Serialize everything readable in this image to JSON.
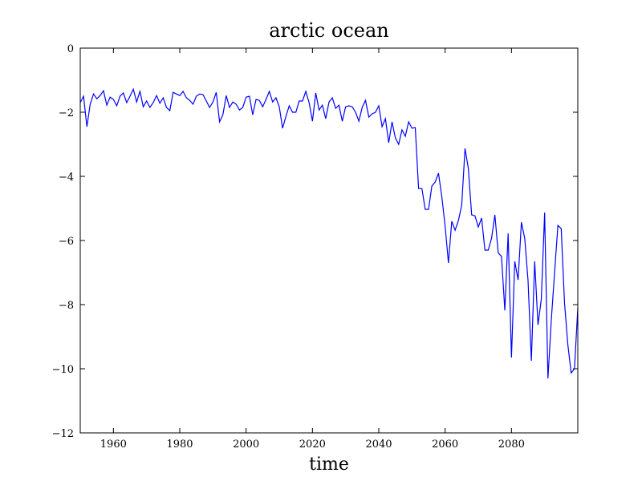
{
  "chart_data": {
    "type": "line",
    "title": "arctic ocean",
    "x_label": "time",
    "x": [
      1950,
      1951,
      1952,
      1953,
      1954,
      1955,
      1956,
      1957,
      1958,
      1959,
      1960,
      1961,
      1962,
      1963,
      1964,
      1965,
      1966,
      1967,
      1968,
      1969,
      1970,
      1971,
      1972,
      1973,
      1974,
      1975,
      1976,
      1977,
      1978,
      1979,
      1980,
      1981,
      1982,
      1983,
      1984,
      1985,
      1986,
      1987,
      1988,
      1989,
      1990,
      1991,
      1992,
      1993,
      1994,
      1995,
      1996,
      1997,
      1998,
      1999,
      2000,
      2001,
      2002,
      2003,
      2004,
      2005,
      2006,
      2007,
      2008,
      2009,
      2010,
      2011,
      2012,
      2013,
      2014,
      2015,
      2016,
      2017,
      2018,
      2019,
      2020,
      2021,
      2022,
      2023,
      2024,
      2025,
      2026,
      2027,
      2028,
      2029,
      2030,
      2031,
      2032,
      2033,
      2034,
      2035,
      2036,
      2037,
      2038,
      2039,
      2040,
      2041,
      2042,
      2043,
      2044,
      2045,
      2046,
      2047,
      2048,
      2049,
      2050,
      2051,
      2052,
      2053,
      2054,
      2055,
      2056,
      2057,
      2058,
      2059,
      2060,
      2061,
      2062,
      2063,
      2064,
      2065,
      2066,
      2067,
      2068,
      2069,
      2070,
      2071,
      2072,
      2073,
      2074,
      2075,
      2076,
      2077,
      2078,
      2079,
      2080,
      2081,
      2082,
      2083,
      2084,
      2085,
      2086,
      2087,
      2088,
      2089,
      2090,
      2091,
      2092,
      2093,
      2094,
      2095,
      2096,
      2097,
      2098,
      2099,
      2100
    ],
    "series": [
      {
        "color": "#0000ff",
        "values": [
          -1.7,
          -1.5,
          -2.45,
          -1.75,
          -1.43,
          -1.58,
          -1.48,
          -1.33,
          -1.78,
          -1.53,
          -1.6,
          -1.8,
          -1.5,
          -1.4,
          -1.7,
          -1.5,
          -1.28,
          -1.68,
          -1.35,
          -1.83,
          -1.65,
          -1.85,
          -1.7,
          -1.48,
          -1.72,
          -1.55,
          -1.85,
          -1.95,
          -1.38,
          -1.43,
          -1.48,
          -1.35,
          -1.55,
          -1.63,
          -1.75,
          -1.5,
          -1.43,
          -1.45,
          -1.65,
          -1.85,
          -1.68,
          -1.38,
          -2.3,
          -2.08,
          -1.48,
          -1.85,
          -1.68,
          -1.75,
          -1.93,
          -1.85,
          -1.53,
          -1.5,
          -2.08,
          -1.6,
          -1.63,
          -1.83,
          -1.6,
          -1.35,
          -1.68,
          -1.55,
          -1.83,
          -2.5,
          -2.13,
          -1.8,
          -2.0,
          -2.0,
          -1.65,
          -1.65,
          -1.35,
          -1.7,
          -2.28,
          -1.4,
          -1.93,
          -1.78,
          -2.2,
          -1.68,
          -1.55,
          -1.88,
          -1.78,
          -2.28,
          -1.83,
          -1.8,
          -1.83,
          -2.0,
          -2.28,
          -1.85,
          -1.63,
          -2.15,
          -2.05,
          -2.0,
          -1.8,
          -2.45,
          -2.2,
          -2.95,
          -2.3,
          -2.8,
          -3.0,
          -2.55,
          -2.75,
          -2.3,
          -2.5,
          -2.48,
          -4.38,
          -4.38,
          -5.03,
          -5.03,
          -4.3,
          -4.18,
          -3.9,
          -4.63,
          -5.55,
          -6.7,
          -5.4,
          -5.68,
          -5.38,
          -4.9,
          -3.13,
          -3.75,
          -5.2,
          -5.23,
          -5.58,
          -5.3,
          -6.3,
          -6.3,
          -5.93,
          -5.2,
          -6.38,
          -6.5,
          -8.18,
          -5.78,
          -9.65,
          -6.65,
          -7.23,
          -5.43,
          -5.93,
          -7.25,
          -9.75,
          -6.65,
          -8.63,
          -7.83,
          -5.13,
          -10.3,
          -8.5,
          -7.0,
          -5.53,
          -5.63,
          -7.95,
          -9.25,
          -10.13,
          -10.0,
          -8.1
        ]
      }
    ],
    "xlim": [
      1950,
      2100
    ],
    "ylim": [
      -12,
      0
    ],
    "xticks": [
      1960,
      1980,
      2000,
      2020,
      2040,
      2060,
      2080
    ],
    "yticks": [
      {
        "value": -12,
        "label": "−12"
      },
      {
        "value": -10,
        "label": "−10"
      },
      {
        "value": -8,
        "label": "−8"
      },
      {
        "value": -6,
        "label": "−6"
      },
      {
        "value": -4,
        "label": "−4"
      },
      {
        "value": -2,
        "label": "−2"
      },
      0
    ],
    "grid": false
  }
}
